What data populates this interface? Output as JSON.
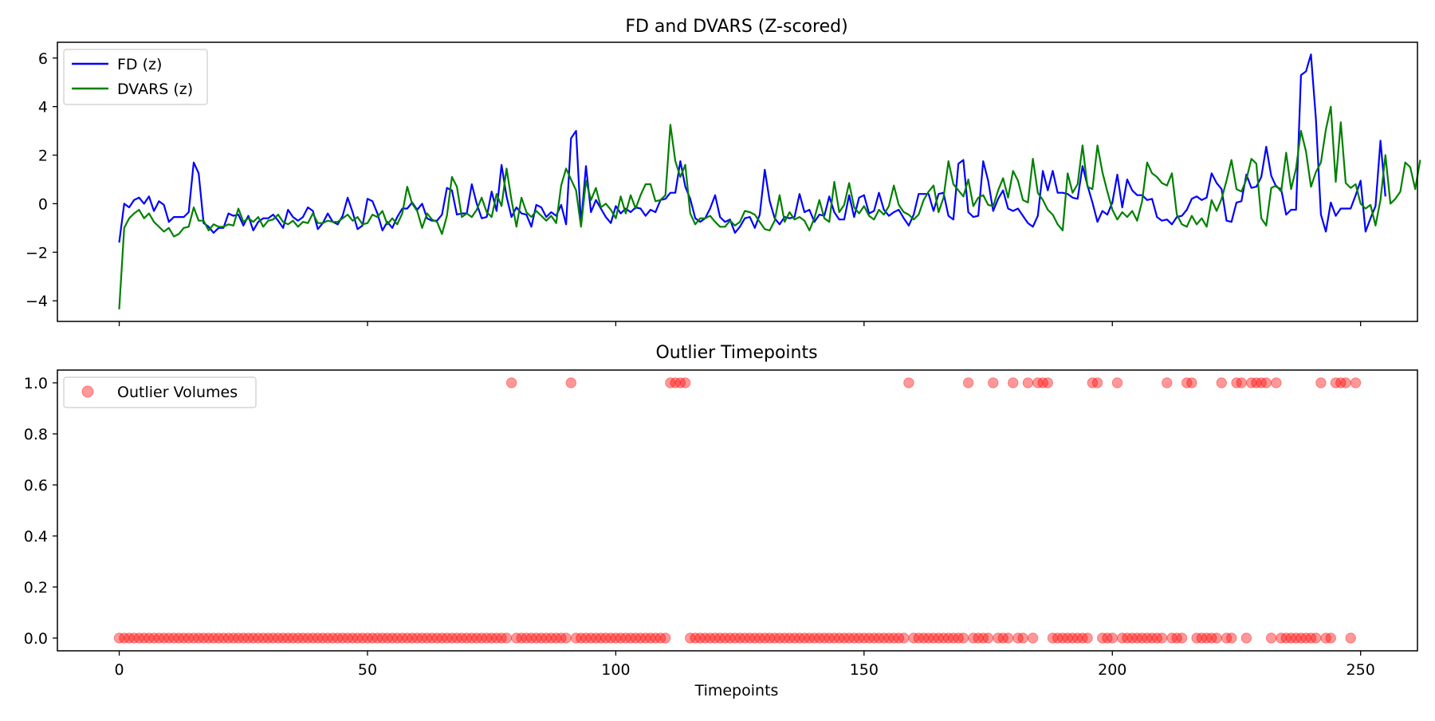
{
  "chart_data": [
    {
      "type": "line",
      "title": "FD and DVARS (Z-scored)",
      "xlabel": "",
      "ylabel": "",
      "xlim": [
        -12.45,
        261.45
      ],
      "ylim": [
        -4.85,
        6.65
      ],
      "xticks": [
        0,
        50,
        100,
        150,
        200,
        250
      ],
      "xtick_labels_visible": false,
      "yticks": [
        -4,
        -2,
        0,
        2,
        4,
        6
      ],
      "ytick_labels": [
        "−4",
        "−2",
        "0",
        "2",
        "4",
        "6"
      ],
      "grid": false,
      "legend": "upper-left",
      "x_start": 0,
      "x_step": 1,
      "series": [
        {
          "name": "FD (z)",
          "color": "#0000ff",
          "values": [
            -1.6,
            0.0,
            -0.15,
            0.15,
            0.25,
            0.0,
            0.3,
            -0.3,
            0.1,
            -0.05,
            -0.75,
            -0.55,
            -0.55,
            -0.55,
            -0.35,
            1.7,
            1.25,
            -0.8,
            -0.95,
            -1.2,
            -1.0,
            -1.0,
            -0.4,
            -0.5,
            -0.45,
            -0.9,
            -0.5,
            -1.1,
            -0.75,
            -0.6,
            -0.6,
            -0.45,
            -0.7,
            -1.0,
            -0.25,
            -0.55,
            -0.7,
            -0.55,
            -0.15,
            -0.3,
            -1.05,
            -0.8,
            -0.4,
            -0.75,
            -0.85,
            -0.5,
            0.25,
            -0.35,
            -1.05,
            -0.9,
            0.2,
            0.1,
            -0.4,
            -1.1,
            -0.75,
            -1.0,
            -0.55,
            -0.2,
            -0.2,
            0.05,
            -0.25,
            0.0,
            -0.6,
            -0.7,
            -0.7,
            -0.45,
            0.65,
            0.55,
            -0.45,
            -0.4,
            -0.4,
            0.8,
            0.0,
            -0.6,
            -0.55,
            0.5,
            -0.3,
            1.6,
            0.3,
            -0.55,
            -0.15,
            -0.4,
            -0.45,
            -0.95,
            -0.05,
            -0.15,
            -0.55,
            -0.35,
            -0.5,
            -0.05,
            -0.85,
            2.7,
            3.0,
            -0.85,
            1.55,
            -0.35,
            0.15,
            -0.2,
            -0.55,
            -0.8,
            -0.1,
            -0.4,
            -0.2,
            -0.35,
            -0.15,
            -0.2,
            -0.5,
            -0.25,
            -0.35,
            0.15,
            0.2,
            0.45,
            0.45,
            1.75,
            0.7,
            0.2,
            -0.6,
            -0.75,
            -0.6,
            -0.2,
            0.35,
            -0.55,
            -0.75,
            -0.65,
            -1.2,
            -0.95,
            -0.6,
            -0.55,
            -1.0,
            -0.45,
            1.4,
            0.1,
            -0.6,
            -0.85,
            -0.55,
            -0.6,
            -0.55,
            0.4,
            -0.35,
            -0.25,
            -0.75,
            -0.45,
            -0.5,
            0.3,
            -0.35,
            -0.65,
            -0.65,
            0.35,
            -0.55,
            0.25,
            0.35,
            -0.4,
            -0.3,
            0.45,
            -0.25,
            -0.5,
            -0.35,
            -0.25,
            -0.6,
            -0.9,
            -0.45,
            0.4,
            0.4,
            0.4,
            -0.3,
            0.4,
            0.45,
            -0.5,
            -0.65,
            1.65,
            1.8,
            -0.35,
            -0.55,
            -0.5,
            1.75,
            0.95,
            -0.3,
            0.2,
            0.55,
            -0.2,
            -0.3,
            -0.2,
            -0.5,
            -0.8,
            -0.95,
            -0.5,
            1.35,
            0.55,
            1.35,
            0.45,
            0.45,
            0.4,
            0.25,
            0.2,
            1.55,
            0.75,
            0.05,
            -0.75,
            -0.3,
            -0.45,
            0.05,
            1.2,
            -0.15,
            1.0,
            0.55,
            0.35,
            0.35,
            0.15,
            0.2,
            -0.55,
            -0.7,
            -0.65,
            -0.85,
            -0.55,
            -0.5,
            -0.25,
            0.2,
            0.3,
            0.15,
            0.25,
            1.25,
            0.85,
            0.6,
            -0.7,
            -0.75,
            0.05,
            0.1,
            1.2,
            0.65,
            0.7,
            1.1,
            2.35,
            1.15,
            0.7,
            0.6,
            -0.45,
            -0.25,
            -0.25,
            5.3,
            5.45,
            6.15,
            3.5,
            -0.45,
            -1.15,
            0.05,
            -0.5,
            -0.2,
            -0.2,
            -0.2,
            0.35,
            0.95,
            -1.15,
            -0.6,
            -0.1,
            2.6,
            0.3
          ]
        },
        {
          "name": "DVARS (z)",
          "color": "#008000",
          "values": [
            -4.35,
            -1.0,
            -0.6,
            -0.4,
            -0.25,
            -0.6,
            -0.4,
            -0.75,
            -0.95,
            -1.15,
            -1.0,
            -1.35,
            -1.25,
            -1.0,
            -0.95,
            -0.15,
            -0.7,
            -0.7,
            -1.1,
            -0.85,
            -0.95,
            -0.95,
            -0.85,
            -0.9,
            -0.2,
            -0.75,
            -0.6,
            -0.75,
            -0.55,
            -0.95,
            -0.7,
            -0.65,
            -0.45,
            -0.75,
            -0.85,
            -0.7,
            -0.95,
            -0.75,
            -0.8,
            -0.4,
            -0.8,
            -0.8,
            -0.7,
            -0.75,
            -0.75,
            -0.6,
            -0.45,
            -0.7,
            -0.55,
            -0.85,
            -0.8,
            -0.45,
            -0.55,
            -0.3,
            -0.85,
            -0.6,
            -0.85,
            -0.4,
            0.7,
            0.0,
            -0.3,
            -1.0,
            -0.4,
            -0.65,
            -0.75,
            -1.25,
            -0.5,
            1.1,
            0.7,
            -0.55,
            -0.4,
            -0.55,
            -0.25,
            0.25,
            -0.35,
            -0.55,
            0.4,
            -0.1,
            1.45,
            0.15,
            -0.95,
            0.25,
            -0.35,
            -0.55,
            -0.3,
            -0.5,
            -0.7,
            -0.5,
            -0.8,
            0.75,
            1.45,
            1.0,
            0.55,
            -0.95,
            0.95,
            0.15,
            0.65,
            -0.15,
            0.0,
            -0.25,
            -0.6,
            0.3,
            -0.4,
            0.35,
            -0.2,
            0.35,
            0.8,
            0.8,
            0.1,
            0.15,
            0.35,
            3.25,
            1.75,
            1.1,
            1.6,
            -0.4,
            -0.85,
            -0.6,
            -0.6,
            -0.5,
            -0.75,
            -0.95,
            -0.95,
            -0.7,
            -0.9,
            -0.75,
            -0.3,
            -0.35,
            -0.45,
            -0.75,
            -1.05,
            -1.1,
            -0.7,
            0.35,
            -0.75,
            -0.35,
            -0.65,
            -0.55,
            -0.7,
            -1.1,
            -0.6,
            0.15,
            -0.6,
            -0.75,
            0.9,
            -0.35,
            -0.05,
            0.85,
            -0.15,
            -0.4,
            -0.1,
            -0.5,
            -0.65,
            -0.25,
            -0.45,
            -0.1,
            0.75,
            -0.05,
            -0.35,
            -0.45,
            -0.65,
            -0.45,
            0.15,
            0.5,
            0.75,
            -0.35,
            0.25,
            1.75,
            0.8,
            0.55,
            0.3,
            1.0,
            -0.1,
            0.25,
            0.35,
            -0.05,
            -0.1,
            0.55,
            1.05,
            0.25,
            1.35,
            0.95,
            0.15,
            0.05,
            1.85,
            0.45,
            0.15,
            -0.25,
            -0.45,
            -0.85,
            -1.1,
            1.25,
            0.45,
            0.8,
            2.4,
            0.7,
            0.6,
            2.4,
            1.3,
            0.5,
            -0.25,
            -0.65,
            -0.35,
            -0.55,
            -0.3,
            -0.7,
            0.1,
            1.7,
            1.25,
            1.1,
            0.85,
            0.75,
            1.25,
            -0.45,
            -0.85,
            -0.95,
            -0.5,
            -0.85,
            -0.6,
            -0.95,
            0.15,
            -0.3,
            0.2,
            0.95,
            1.8,
            0.6,
            0.5,
            1.0,
            1.85,
            1.65,
            -0.6,
            -0.9,
            0.65,
            0.75,
            0.5,
            2.1,
            0.6,
            1.45,
            3.0,
            2.15,
            0.7,
            1.3,
            1.7,
            3.05,
            4.0,
            0.9,
            3.35,
            0.85,
            0.65,
            0.8,
            0.0,
            -0.2,
            -0.05,
            -0.9,
            0.15,
            2.0,
            0.0,
            0.2,
            0.5,
            1.7,
            1.5,
            0.6,
            1.8
          ]
        }
      ]
    },
    {
      "type": "scatter",
      "title": "Outlier Timepoints",
      "xlabel": "Timepoints",
      "ylabel": "",
      "xlim": [
        -12.45,
        261.45
      ],
      "ylim": [
        -0.05,
        1.05
      ],
      "xticks": [
        0,
        50,
        100,
        150,
        200,
        250
      ],
      "xtick_labels": [
        "0",
        "50",
        "100",
        "150",
        "200",
        "250"
      ],
      "yticks": [
        0.0,
        0.2,
        0.4,
        0.6,
        0.8,
        1.0
      ],
      "ytick_labels": [
        "0.0",
        "0.2",
        "0.4",
        "0.6",
        "0.8",
        "1.0"
      ],
      "grid": false,
      "legend": "upper-left",
      "series": [
        {
          "name": "Outlier Volumes",
          "color": "#ff0000",
          "alpha": 0.4,
          "n_points": 250,
          "outlier_x": [
            79,
            91,
            111,
            112,
            113,
            114,
            159,
            171,
            176,
            180,
            183,
            185,
            186,
            187,
            196,
            197,
            201,
            211,
            215,
            216,
            222,
            225,
            226,
            228,
            229,
            230,
            231,
            233,
            242,
            245,
            246,
            247,
            249
          ],
          "y_when_outlier": 1,
          "y_otherwise": 0
        }
      ]
    }
  ]
}
